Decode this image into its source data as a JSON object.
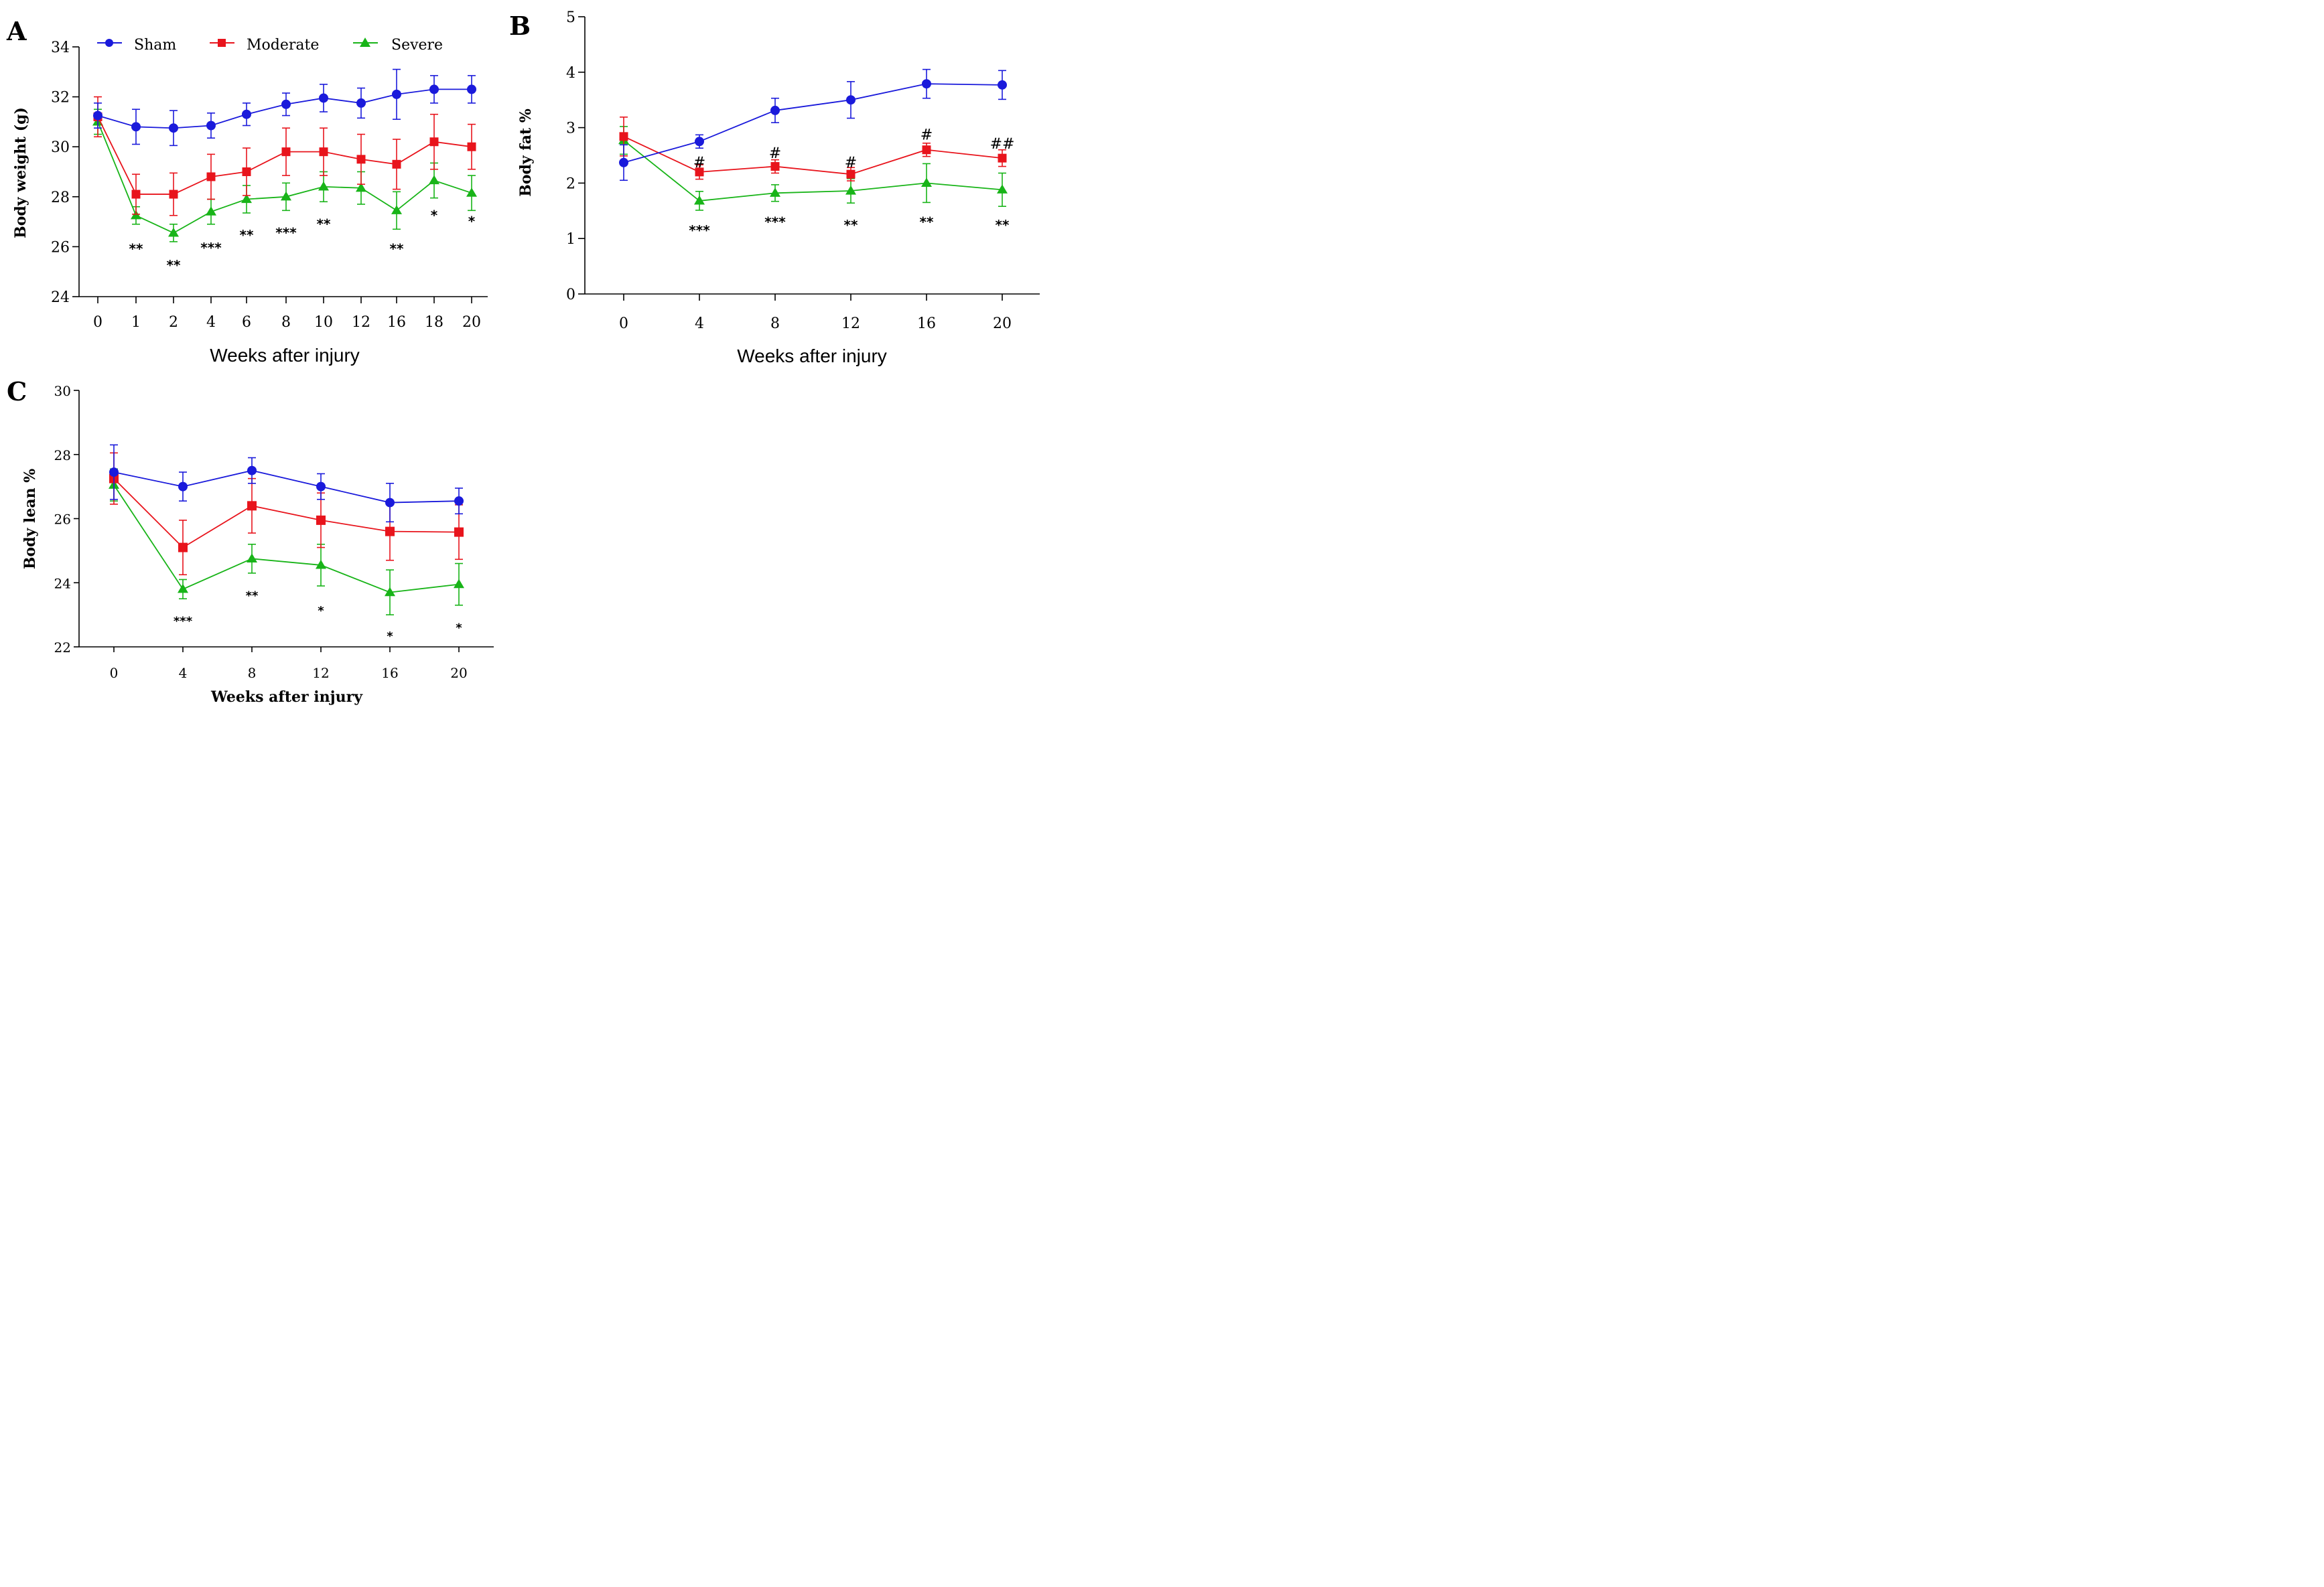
{
  "colors": {
    "Sham": "#1a1adb",
    "Moderate": "#e8141c",
    "Severe": "#18b418"
  },
  "legend": {
    "entries": [
      {
        "name": "Sham",
        "marker": "circle"
      },
      {
        "name": "Moderate",
        "marker": "square"
      },
      {
        "name": "Severe",
        "marker": "triangle"
      }
    ]
  },
  "chart_data": [
    {
      "panel": "A",
      "type": "line",
      "xlabel": "Weeks after injury",
      "ylabel": "Body weight (g)",
      "ylim": [
        24,
        34
      ],
      "yticks": [
        "24",
        "26",
        "28",
        "30",
        "32",
        "34"
      ],
      "categories": [
        "0",
        "1",
        "2",
        "4",
        "6",
        "8",
        "10",
        "12",
        "16",
        "18",
        "20"
      ],
      "series": [
        {
          "name": "Sham",
          "values": [
            31.25,
            30.8,
            30.75,
            30.85,
            31.3,
            31.7,
            31.95,
            31.75,
            32.1,
            32.3,
            32.3
          ],
          "errors": [
            0.5,
            0.7,
            0.7,
            0.5,
            0.45,
            0.45,
            0.55,
            0.6,
            1.0,
            0.55,
            0.55
          ]
        },
        {
          "name": "Moderate",
          "values": [
            31.2,
            28.1,
            28.1,
            28.8,
            29.0,
            29.8,
            29.8,
            29.5,
            29.3,
            30.2,
            30.0
          ],
          "errors": [
            0.8,
            0.8,
            0.85,
            0.9,
            0.95,
            0.95,
            0.95,
            1.0,
            1.0,
            1.1,
            0.9
          ]
        },
        {
          "name": "Severe",
          "values": [
            31.0,
            27.25,
            26.55,
            27.4,
            27.9,
            28.0,
            28.4,
            28.35,
            27.45,
            28.65,
            28.15
          ],
          "errors": [
            0.5,
            0.35,
            0.35,
            0.5,
            0.55,
            0.55,
            0.6,
            0.65,
            0.75,
            0.7,
            0.7
          ]
        }
      ],
      "annotations": [
        {
          "x": "1",
          "text": "**",
          "y": 26.1
        },
        {
          "x": "2",
          "text": "**",
          "y": 25.45
        },
        {
          "x": "4",
          "text": "***",
          "y": 26.15
        },
        {
          "x": "6",
          "text": "**",
          "y": 26.65
        },
        {
          "x": "8",
          "text": "***",
          "y": 26.75
        },
        {
          "x": "10",
          "text": "**",
          "y": 27.1
        },
        {
          "x": "16",
          "text": "**",
          "y": 26.1
        },
        {
          "x": "18",
          "text": "*",
          "y": 27.45
        },
        {
          "x": "20",
          "text": "*",
          "y": 27.2
        }
      ]
    },
    {
      "panel": "B",
      "type": "line",
      "xlabel": "Weeks after injury",
      "ylabel": "Body fat %",
      "ylim": [
        0,
        5
      ],
      "yticks": [
        "0",
        "1",
        "2",
        "3",
        "4",
        "5"
      ],
      "categories": [
        "0",
        "4",
        "8",
        "12",
        "16",
        "20"
      ],
      "series": [
        {
          "name": "Sham",
          "values": [
            2.37,
            2.75,
            3.31,
            3.5,
            3.79,
            3.77
          ],
          "errors": [
            0.32,
            0.12,
            0.22,
            0.33,
            0.26,
            0.26
          ]
        },
        {
          "name": "Moderate",
          "values": [
            2.84,
            2.2,
            2.3,
            2.16,
            2.6,
            2.45
          ],
          "errors": [
            0.35,
            0.13,
            0.12,
            0.12,
            0.12,
            0.15
          ]
        },
        {
          "name": "Severe",
          "values": [
            2.77,
            1.68,
            1.82,
            1.86,
            2.0,
            1.88
          ],
          "errors": [
            0.25,
            0.17,
            0.15,
            0.22,
            0.35,
            0.3
          ]
        }
      ],
      "annotations": [
        {
          "x": "4",
          "text": "***",
          "y": 1.23
        },
        {
          "x": "8",
          "text": "***",
          "y": 1.38
        },
        {
          "x": "12",
          "text": "**",
          "y": 1.33
        },
        {
          "x": "16",
          "text": "**",
          "y": 1.38
        },
        {
          "x": "20",
          "text": "**",
          "y": 1.33
        }
      ],
      "hash_annotations": [
        {
          "x": "4",
          "text": "#",
          "y": 2.38
        },
        {
          "x": "8",
          "text": "#",
          "y": 2.55
        },
        {
          "x": "12",
          "text": "#",
          "y": 2.38
        },
        {
          "x": "16",
          "text": "#",
          "y": 2.88
        },
        {
          "x": "20",
          "text": "##",
          "y": 2.72
        }
      ]
    },
    {
      "panel": "C",
      "type": "line",
      "xlabel": "Weeks after injury",
      "ylabel": "Body lean %",
      "ylim": [
        22,
        30
      ],
      "yticks": [
        "22",
        "24",
        "26",
        "28",
        "30"
      ],
      "categories": [
        "0",
        "4",
        "8",
        "12",
        "16",
        "20"
      ],
      "series": [
        {
          "name": "Sham",
          "values": [
            27.45,
            27.0,
            27.5,
            27.0,
            26.5,
            26.55
          ],
          "errors": [
            0.85,
            0.45,
            0.4,
            0.4,
            0.6,
            0.4
          ]
        },
        {
          "name": "Moderate",
          "values": [
            27.25,
            25.1,
            26.4,
            25.95,
            25.6,
            25.58
          ],
          "errors": [
            0.8,
            0.85,
            0.85,
            0.85,
            0.9,
            0.85
          ]
        },
        {
          "name": "Severe",
          "values": [
            27.05,
            23.8,
            24.75,
            24.55,
            23.7,
            23.95
          ],
          "errors": [
            0.5,
            0.3,
            0.45,
            0.65,
            0.7,
            0.65
          ]
        }
      ],
      "annotations": [
        {
          "x": "4",
          "text": "***",
          "y": 22.97
        },
        {
          "x": "8",
          "text": "**",
          "y": 23.76
        },
        {
          "x": "12",
          "text": "*",
          "y": 23.3
        },
        {
          "x": "16",
          "text": "*",
          "y": 22.5
        },
        {
          "x": "20",
          "text": "*",
          "y": 22.76
        }
      ]
    }
  ]
}
